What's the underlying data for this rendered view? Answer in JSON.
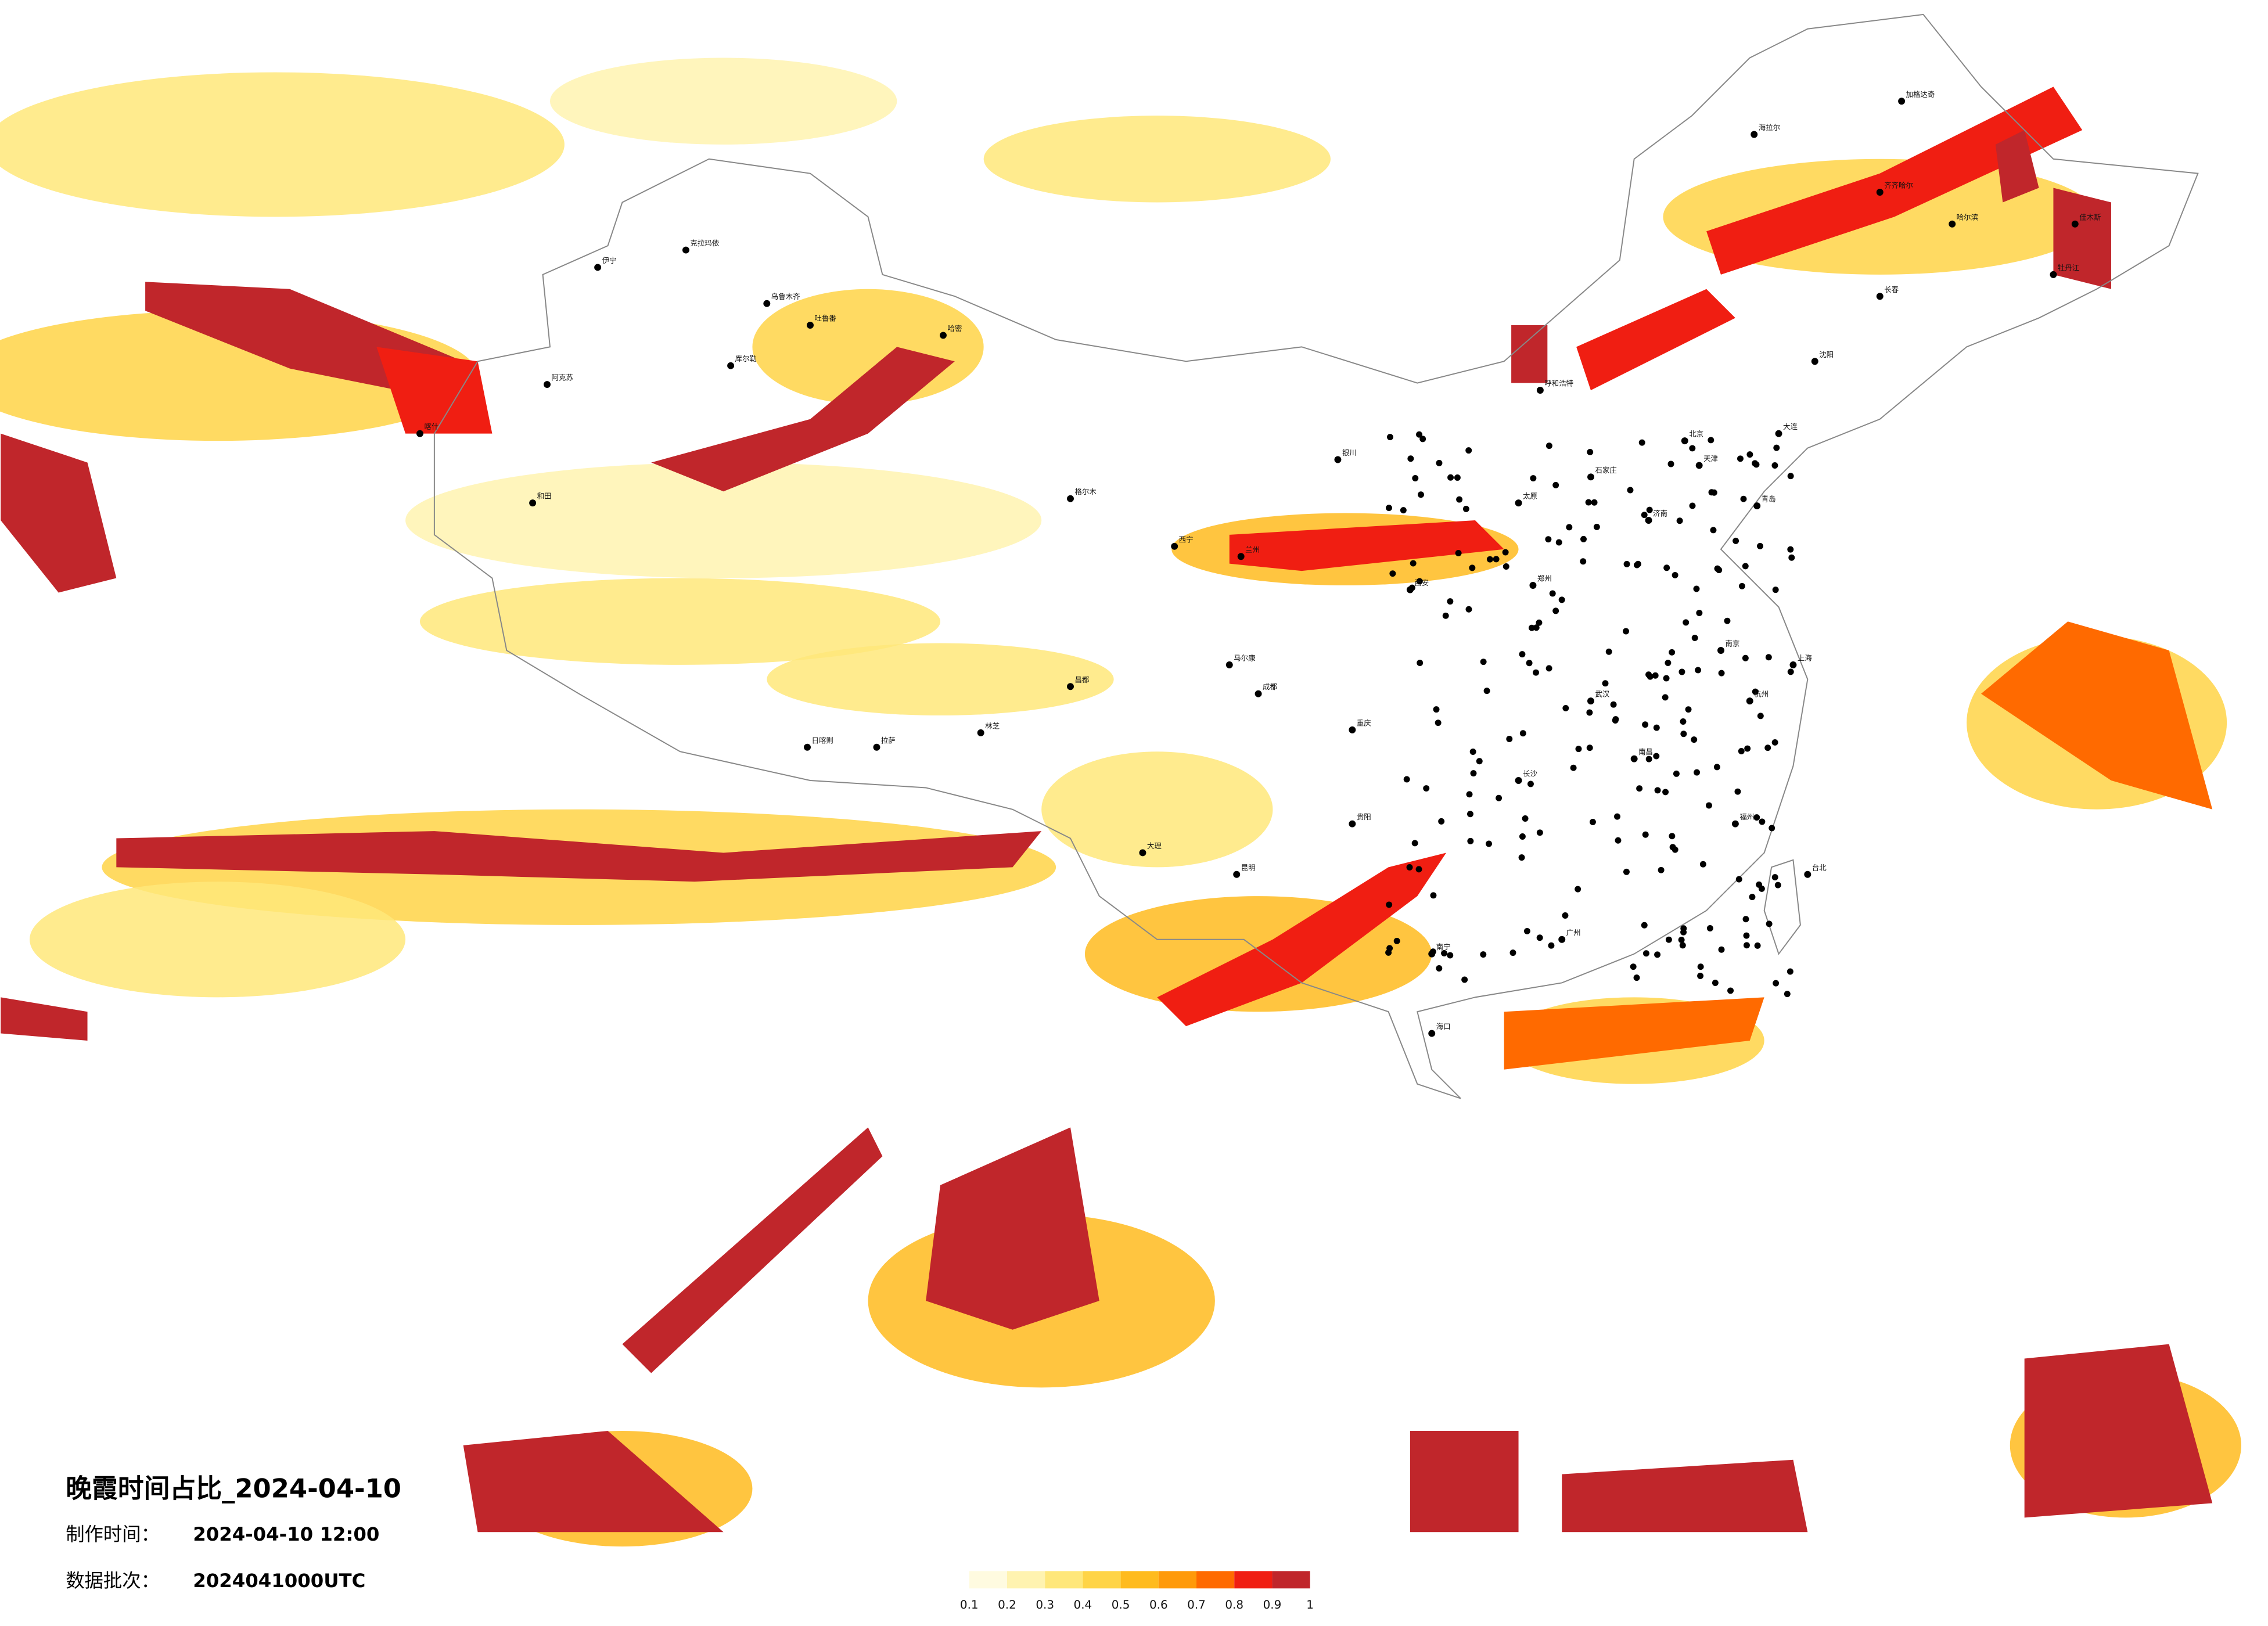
{
  "title": "晚霞时间占比_2024-04-10",
  "info": {
    "make_time_label": "制作时间：",
    "make_time": "2024-04-10 12:00",
    "batch_label": "数据批次：",
    "batch": "2024041000UTC"
  },
  "legend": {
    "labels": [
      0.1,
      0.2,
      0.3,
      0.4,
      0.5,
      0.6,
      0.7,
      0.8,
      0.9,
      1
    ],
    "colors": [
      "#fffbe0",
      "#fff3b0",
      "#ffe77a",
      "#ffd447",
      "#ffbb1e",
      "#ff9a0a",
      "#ff6a00",
      "#f01e12",
      "#c0262b"
    ]
  },
  "cities": [
    "克拉玛依",
    "伊宁",
    "乌鲁木齐",
    "吐鲁番",
    "哈密",
    "库尔勒",
    "阿克苏",
    "喀什",
    "和田",
    "格尔木",
    "西宁",
    "兰州",
    "银川",
    "呼和浩特",
    "北京",
    "天津",
    "石家庄",
    "太原",
    "西安",
    "郑州",
    "济南",
    "青岛",
    "武汉",
    "长沙",
    "南昌",
    "南京",
    "上海",
    "杭州",
    "福州",
    "广州",
    "南宁",
    "海口",
    "昆明",
    "贵阳",
    "成都",
    "重庆",
    "拉萨",
    "日喀则",
    "林芝",
    "昌都",
    "马尔康",
    "大理",
    "台北",
    "沈阳",
    "长春",
    "哈尔滨",
    "大连",
    "齐齐哈尔",
    "海拉尔",
    "加格达奇",
    "牡丹江",
    "佳木斯"
  ]
}
